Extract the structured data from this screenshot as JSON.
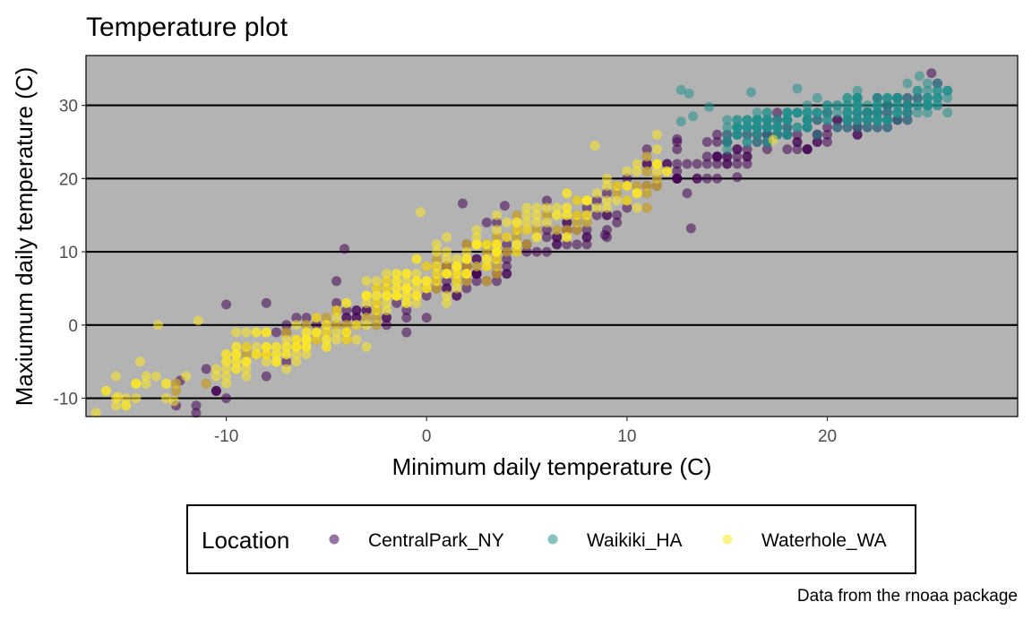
{
  "chart_data": {
    "type": "scatter",
    "title": "Temperature plot",
    "xlabel": "Minimum daily temperature (C)",
    "ylabel": "Maxiumum daily temperature (C)",
    "caption": "Data from the rnoaa package",
    "xlim": [
      -17,
      29.5
    ],
    "ylim": [
      -12.5,
      36.8
    ],
    "x_ticks": [
      -10,
      0,
      10,
      20
    ],
    "y_ticks": [
      -10,
      0,
      10,
      20,
      30
    ],
    "horizontal_grid": true,
    "vertical_grid": false,
    "panel_background": "#b3b3b3",
    "point_opacity": 0.55,
    "legend": {
      "title": "Location",
      "position": "bottom"
    },
    "series": [
      {
        "name": "CentralPark_NY",
        "color": "#440154",
        "clusters": [
          {
            "x_range": [
              -13,
              -9
            ],
            "slope": 1.0,
            "intercept": 1.0,
            "spread": 2.5,
            "n": 12
          },
          {
            "x_range": [
              -9,
              0
            ],
            "slope": 1.0,
            "intercept": 5.0,
            "spread": 2.8,
            "n": 60
          },
          {
            "x_range": [
              0,
              10
            ],
            "slope": 1.05,
            "intercept": 5.5,
            "spread": 2.8,
            "n": 130
          },
          {
            "x_range": [
              10,
              18
            ],
            "slope": 0.95,
            "intercept": 9.0,
            "spread": 2.5,
            "n": 70
          },
          {
            "x_range": [
              18,
              25.5
            ],
            "slope": 0.7,
            "intercept": 13.0,
            "spread": 2.0,
            "n": 60
          }
        ],
        "points": [
          [
            -10,
            2.8
          ],
          [
            -12.3,
            -7.6
          ],
          [
            1.8,
            16.6
          ],
          [
            3.9,
            16.3
          ],
          [
            12.5,
            25.4
          ],
          [
            25.2,
            34.4
          ],
          [
            15.5,
            20.2
          ],
          [
            13.2,
            13.2
          ],
          [
            8.9,
            12.3
          ],
          [
            -4.1,
            10.4
          ]
        ]
      },
      {
        "name": "Waikiki_HA",
        "color": "#21908d",
        "clusters": [
          {
            "x_range": [
              15,
              26
            ],
            "slope": 0.45,
            "intercept": 19.5,
            "spread": 1.7,
            "n": 230
          }
        ],
        "points": [
          [
            12.7,
            32.1
          ],
          [
            13.1,
            31.6
          ],
          [
            13.3,
            28.5
          ],
          [
            12.7,
            27.8
          ],
          [
            14.1,
            29.8
          ],
          [
            16.2,
            31.8
          ],
          [
            18.5,
            32.3
          ],
          [
            24.6,
            34.0
          ]
        ]
      },
      {
        "name": "Waterhole_WA",
        "color": "#fde725",
        "clusters": [
          {
            "x_range": [
              -16.5,
              -10
            ],
            "slope": 0.9,
            "intercept": 4.5,
            "spread": 2.0,
            "n": 25
          },
          {
            "x_range": [
              -10,
              -3
            ],
            "slope": 0.9,
            "intercept": 3.8,
            "spread": 2.2,
            "n": 110
          },
          {
            "x_range": [
              -3,
              4
            ],
            "slope": 1.1,
            "intercept": 6.2,
            "spread": 2.6,
            "n": 150
          },
          {
            "x_range": [
              4,
              12
            ],
            "slope": 1.05,
            "intercept": 8.0,
            "spread": 2.6,
            "n": 90
          }
        ],
        "points": [
          [
            -16.0,
            -9.0
          ],
          [
            -15.4,
            -9.8
          ],
          [
            -13.4,
            0.0
          ],
          [
            -12.6,
            -10.4
          ],
          [
            -14.3,
            -5.0
          ],
          [
            -11.4,
            0.6
          ],
          [
            -0.3,
            15.4
          ],
          [
            11.5,
            26.0
          ],
          [
            8.4,
            24.5
          ],
          [
            17.3,
            25.3
          ]
        ]
      }
    ]
  }
}
